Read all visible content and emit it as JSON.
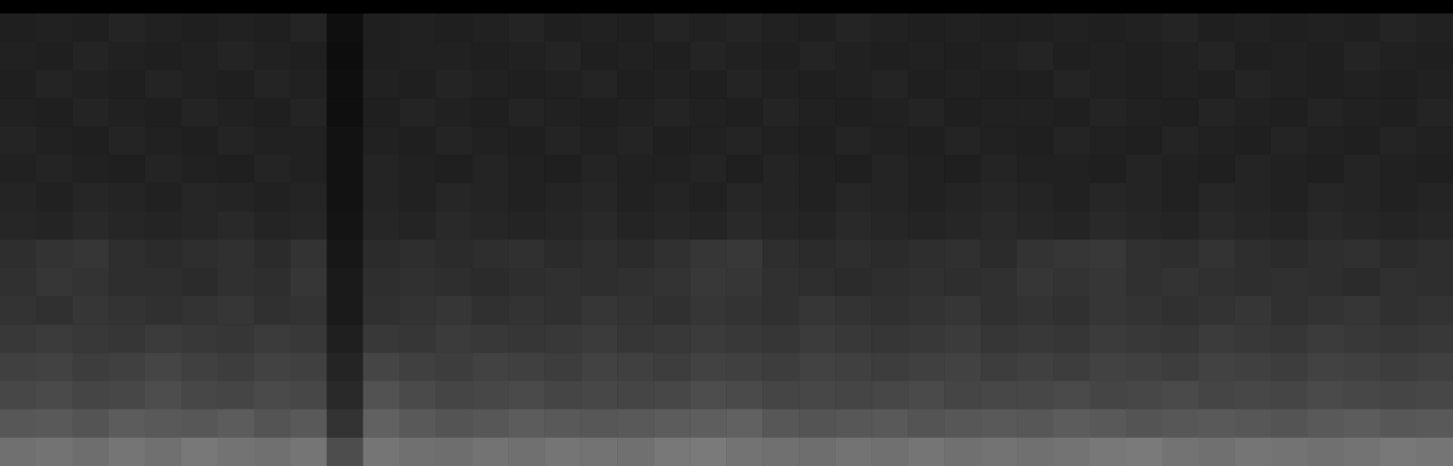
{
  "chart_data": {
    "type": "heatmap",
    "tick_labels": false,
    "grid": false,
    "color_range": [
      0,
      100
    ],
    "cells": [
      [
        12,
        13,
        12,
        14,
        13,
        12,
        13,
        12,
        14,
        6,
        12,
        13,
        12,
        13,
        14,
        12,
        13,
        12,
        14,
        13,
        14,
        13,
        12,
        14,
        13,
        12,
        13,
        12,
        12,
        13,
        12,
        13,
        14,
        12,
        13,
        12,
        13,
        12,
        14,
        13
      ],
      [
        13,
        12,
        14,
        13,
        12,
        13,
        14,
        13,
        12,
        5,
        12,
        13,
        13,
        12,
        13,
        14,
        12,
        13,
        12,
        14,
        13,
        12,
        14,
        13,
        12,
        13,
        12,
        13,
        14,
        12,
        13,
        12,
        13,
        14,
        12,
        13,
        12,
        14,
        13,
        12
      ],
      [
        12,
        14,
        13,
        12,
        14,
        13,
        12,
        14,
        13,
        6,
        13,
        12,
        14,
        13,
        12,
        13,
        14,
        12,
        13,
        12,
        14,
        13,
        12,
        13,
        14,
        12,
        13,
        12,
        12,
        14,
        13,
        12,
        13,
        12,
        14,
        13,
        12,
        13,
        12,
        13
      ],
      [
        13,
        12,
        14,
        13,
        12,
        14,
        13,
        12,
        14,
        6,
        12,
        14,
        13,
        12,
        14,
        13,
        12,
        13,
        14,
        13,
        12,
        14,
        13,
        12,
        13,
        14,
        12,
        13,
        13,
        12,
        14,
        13,
        12,
        14,
        13,
        12,
        14,
        13,
        12,
        14
      ],
      [
        14,
        13,
        12,
        14,
        13,
        12,
        14,
        13,
        13,
        7,
        13,
        12,
        14,
        13,
        12,
        14,
        13,
        14,
        12,
        13,
        14,
        13,
        12,
        14,
        13,
        12,
        14,
        13,
        12,
        14,
        13,
        12,
        14,
        13,
        12,
        14,
        13,
        12,
        14,
        13
      ],
      [
        13,
        14,
        13,
        12,
        14,
        13,
        12,
        14,
        13,
        7,
        14,
        13,
        12,
        14,
        13,
        12,
        14,
        13,
        13,
        14,
        12,
        14,
        13,
        12,
        14,
        13,
        12,
        14,
        13,
        13,
        12,
        14,
        13,
        12,
        14,
        13,
        12,
        14,
        13,
        12
      ],
      [
        14,
        13,
        15,
        14,
        13,
        15,
        14,
        13,
        14,
        7,
        14,
        13,
        15,
        14,
        13,
        14,
        15,
        13,
        14,
        13,
        15,
        14,
        13,
        15,
        14,
        13,
        14,
        15,
        14,
        13,
        15,
        14,
        13,
        15,
        14,
        13,
        15,
        14,
        13,
        14
      ],
      [
        15,
        14,
        16,
        15,
        14,
        15,
        16,
        14,
        15,
        8,
        15,
        14,
        16,
        15,
        14,
        15,
        16,
        14,
        15,
        14,
        16,
        15,
        14,
        16,
        15,
        14,
        15,
        16,
        15,
        14,
        16,
        15,
        14,
        16,
        15,
        14,
        16,
        15,
        14,
        15
      ],
      [
        18,
        20,
        21,
        18,
        17,
        18,
        19,
        17,
        20,
        9,
        17,
        18,
        17,
        18,
        19,
        17,
        18,
        17,
        19,
        21,
        22,
        18,
        17,
        18,
        17,
        18,
        19,
        17,
        20,
        21,
        22,
        19,
        18,
        20,
        18,
        17,
        18,
        19,
        17,
        18
      ],
      [
        19,
        21,
        20,
        18,
        18,
        17,
        19,
        18,
        21,
        10,
        18,
        19,
        18,
        17,
        18,
        19,
        18,
        19,
        20,
        22,
        21,
        19,
        18,
        17,
        18,
        19,
        18,
        19,
        21,
        20,
        21,
        19,
        20,
        19,
        18,
        19,
        18,
        17,
        19,
        18
      ],
      [
        20,
        19,
        21,
        20,
        19,
        20,
        21,
        19,
        20,
        10,
        19,
        20,
        21,
        19,
        20,
        19,
        21,
        20,
        19,
        21,
        20,
        19,
        21,
        20,
        19,
        20,
        21,
        19,
        20,
        19,
        21,
        20,
        19,
        20,
        21,
        19,
        20,
        21,
        19,
        20
      ],
      [
        22,
        23,
        22,
        21,
        23,
        22,
        21,
        23,
        22,
        12,
        22,
        21,
        23,
        22,
        21,
        22,
        23,
        21,
        22,
        23,
        22,
        21,
        23,
        22,
        21,
        22,
        23,
        21,
        22,
        21,
        23,
        22,
        21,
        23,
        22,
        21,
        23,
        22,
        21,
        22
      ],
      [
        25,
        26,
        24,
        25,
        27,
        25,
        24,
        26,
        25,
        14,
        27,
        25,
        24,
        26,
        25,
        24,
        26,
        25,
        24,
        26,
        25,
        24,
        26,
        25,
        24,
        25,
        26,
        24,
        25,
        24,
        26,
        25,
        24,
        26,
        25,
        24,
        26,
        25,
        24,
        25
      ],
      [
        28,
        29,
        27,
        28,
        30,
        28,
        27,
        29,
        28,
        16,
        32,
        29,
        27,
        28,
        29,
        27,
        28,
        27,
        28,
        30,
        29,
        27,
        28,
        27,
        28,
        29,
        27,
        28,
        28,
        29,
        27,
        28,
        29,
        27,
        28,
        27,
        29,
        28,
        27,
        28
      ],
      [
        34,
        35,
        33,
        36,
        35,
        34,
        36,
        33,
        35,
        20,
        38,
        35,
        33,
        34,
        36,
        35,
        34,
        35,
        36,
        37,
        38,
        34,
        33,
        34,
        35,
        33,
        34,
        35,
        34,
        36,
        35,
        33,
        34,
        35,
        34,
        33,
        35,
        36,
        34,
        35
      ],
      [
        44,
        45,
        43,
        46,
        44,
        47,
        45,
        44,
        46,
        30,
        46,
        44,
        43,
        45,
        44,
        46,
        45,
        44,
        47,
        48,
        45,
        44,
        43,
        45,
        44,
        46,
        44,
        45,
        44,
        45,
        47,
        48,
        45,
        44,
        46,
        45,
        44,
        45,
        47,
        46
      ]
    ]
  }
}
